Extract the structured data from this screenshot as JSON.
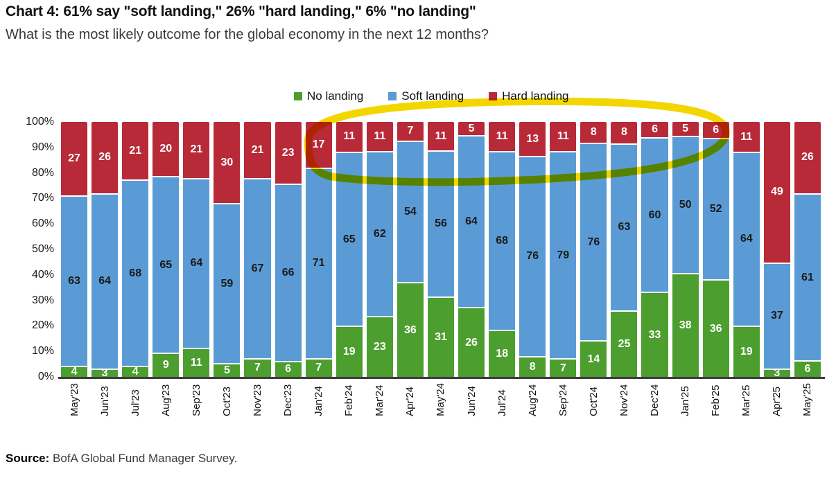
{
  "title": "Chart 4: 61% say \"soft landing,\" 26% \"hard landing,\" 6% \"no landing\"",
  "subtitle": "What is the most likely outcome for the global economy in the next 12 months?",
  "source": {
    "label": "Source:",
    "text": " BofA Global Fund Manager Survey."
  },
  "annotation": {
    "type": "hand-drawn-highlighter-ellipse",
    "color": "#f3d600",
    "meaning": "circles the low hard-landing readings from Jan'24 through Feb'25"
  },
  "chart_data": {
    "type": "bar",
    "stacked": true,
    "normalized_to_100pct": true,
    "grid": "off",
    "legend_position": "top",
    "title": "Chart 4: 61% say \"soft landing,\" 26% \"hard landing,\" 6% \"no landing\"",
    "xlabel": "",
    "ylabel": "",
    "ylim": [
      0,
      100
    ],
    "y_tick_labels": [
      "100%",
      "90%",
      "80%",
      "70%",
      "60%",
      "50%",
      "40%",
      "30%",
      "20%",
      "10%",
      "0%"
    ],
    "categories": [
      "May'23",
      "Jun'23",
      "Jul'23",
      "Aug'23",
      "Sep'23",
      "Oct'23",
      "Nov'23",
      "Dec'23",
      "Jan'24",
      "Feb'24",
      "Mar'24",
      "Apr'24",
      "May'24",
      "Jun'24",
      "Jul'24",
      "Aug'24",
      "Sep'24",
      "Oct'24",
      "Nov'24",
      "Dec'24",
      "Jan'25",
      "Feb'25",
      "Mar'25",
      "Apr'25",
      "May'25"
    ],
    "legend": {
      "items": [
        {
          "label": "No landing",
          "color": "#4c9e2e"
        },
        {
          "label": "Soft landing",
          "color": "#5b9bd5"
        },
        {
          "label": "Hard landing",
          "color": "#b82a38"
        }
      ]
    },
    "series": [
      {
        "name": "No landing",
        "key": "no-landing",
        "color": "#4c9e2e",
        "label_color": "#ffffff",
        "values": [
          4,
          3,
          4,
          9,
          11,
          5,
          7,
          6,
          7,
          19,
          23,
          36,
          31,
          26,
          18,
          8,
          7,
          14,
          25,
          33,
          38,
          36,
          19,
          3,
          6
        ]
      },
      {
        "name": "Soft landing",
        "key": "soft-landing",
        "color": "#5b9bd5",
        "label_color": "#1a1a1a",
        "values": [
          63,
          64,
          68,
          65,
          64,
          59,
          67,
          66,
          71,
          65,
          62,
          54,
          56,
          64,
          68,
          76,
          79,
          76,
          63,
          60,
          50,
          52,
          64,
          37,
          61
        ]
      },
      {
        "name": "Hard landing",
        "key": "hard-landing",
        "color": "#b82a38",
        "label_color": "#ffffff",
        "values": [
          27,
          26,
          21,
          20,
          21,
          30,
          21,
          23,
          17,
          11,
          11,
          7,
          11,
          5,
          11,
          13,
          11,
          8,
          8,
          6,
          5,
          6,
          11,
          49,
          26
        ]
      }
    ]
  }
}
